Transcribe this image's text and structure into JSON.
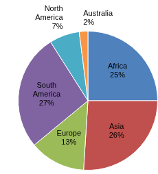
{
  "chart_data": {
    "type": "pie",
    "categories": [
      "Africa",
      "Asia",
      "Europe",
      "South America",
      "North America",
      "Australia"
    ],
    "values": [
      25,
      26,
      13,
      27,
      7,
      2
    ],
    "value_labels": [
      "25%",
      "26%",
      "13%",
      "27%",
      "7%",
      "2%"
    ],
    "colors": [
      "#4f81bd",
      "#c0504d",
      "#9bbb59",
      "#8064a2",
      "#4bacc6",
      "#f79646"
    ],
    "data_labels": true
  }
}
